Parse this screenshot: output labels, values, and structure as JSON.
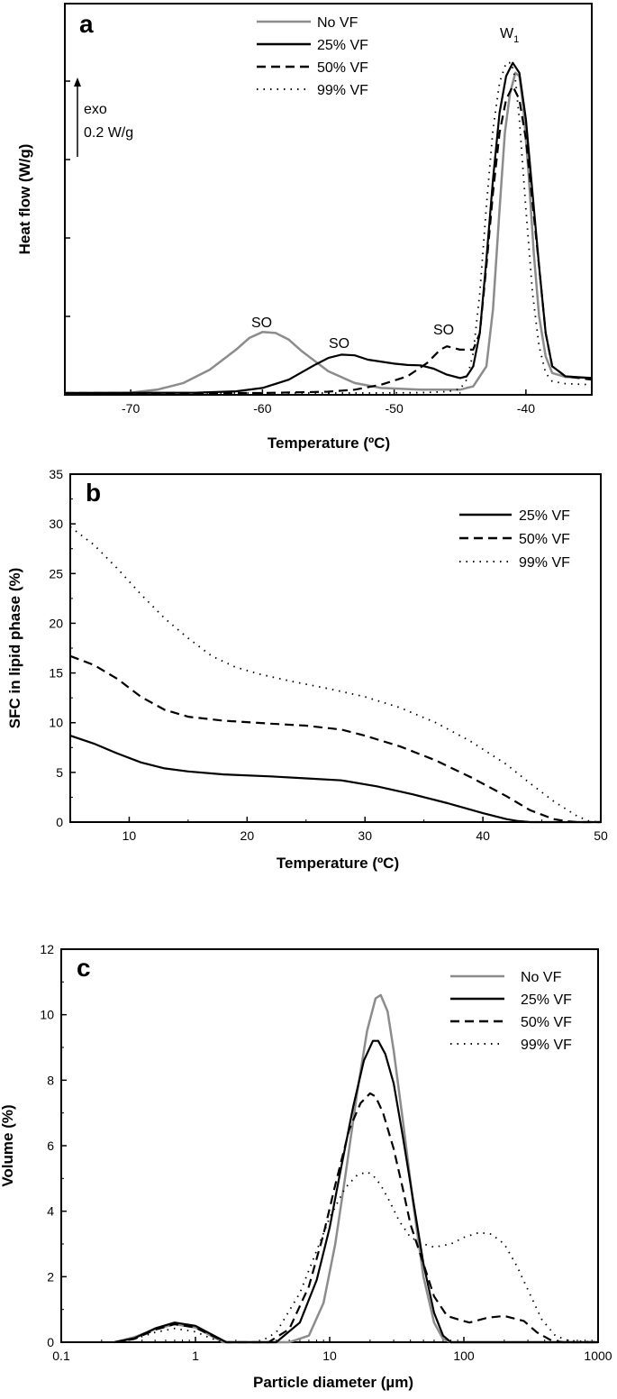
{
  "colors": {
    "no_vf": "#8c8c8c",
    "vf": "#000000"
  },
  "chart_data": [
    {
      "type": "line",
      "panel": "a",
      "title": "",
      "xlabel": "Temperature (ºC)",
      "ylabel": "Heat flow (W/g)",
      "xlim": [
        -75,
        -35
      ],
      "ylim": [
        0,
        1
      ],
      "x_ticks": [
        -70,
        -60,
        -50,
        -40
      ],
      "y_ticks_labeled": false,
      "legend_position": "top-left",
      "scale_bar": {
        "label_1": "exo",
        "label_2": "0.2 W/g"
      },
      "annotations": [
        {
          "text": "SO",
          "x": -60,
          "y": 0.2
        },
        {
          "text": "SO",
          "x": -53.6,
          "y": 0.146
        },
        {
          "text": "SO",
          "x": -45.9,
          "y": 0.186
        },
        {
          "text": "W",
          "sub": "1",
          "x": -42.3,
          "y": 1.0
        }
      ],
      "series": [
        {
          "name": "No VF",
          "style": "gray",
          "x": [
            -75,
            -70,
            -68,
            -66,
            -64,
            -62,
            -61,
            -60,
            -59,
            -58,
            -57,
            -55,
            -53,
            -51,
            -48,
            -45,
            -44,
            -43,
            -42.5,
            -42,
            -41.6,
            -41.2,
            -40.8,
            -40.5,
            -40.2,
            -39.8,
            -39.4,
            -39,
            -38.5,
            -38,
            -37,
            -35
          ],
          "y": [
            0,
            0.001,
            0.01,
            0.03,
            0.07,
            0.13,
            0.165,
            0.183,
            0.18,
            0.16,
            0.125,
            0.065,
            0.03,
            0.015,
            0.01,
            0.01,
            0.02,
            0.08,
            0.25,
            0.55,
            0.78,
            0.9,
            0.96,
            0.95,
            0.86,
            0.66,
            0.42,
            0.23,
            0.11,
            0.06,
            0.048,
            0.045
          ]
        },
        {
          "name": "25% VF",
          "style": "solid",
          "x": [
            -75,
            -65,
            -62,
            -60,
            -58,
            -56,
            -55,
            -54,
            -53,
            -52,
            -50,
            -49,
            -48,
            -47,
            -46,
            -45,
            -44.5,
            -44,
            -43.5,
            -43,
            -42.5,
            -42,
            -41.5,
            -41,
            -40.5,
            -40,
            -39.5,
            -39,
            -38.5,
            -38,
            -37,
            -35
          ],
          "y": [
            0,
            0.001,
            0.005,
            0.015,
            0.04,
            0.085,
            0.105,
            0.115,
            0.113,
            0.1,
            0.088,
            0.084,
            0.083,
            0.073,
            0.055,
            0.045,
            0.05,
            0.08,
            0.18,
            0.4,
            0.64,
            0.84,
            0.95,
            0.99,
            0.96,
            0.82,
            0.6,
            0.38,
            0.18,
            0.08,
            0.05,
            0.045
          ]
        },
        {
          "name": "50% VF",
          "style": "dashed",
          "x": [
            -75,
            -60,
            -55,
            -53,
            -51,
            -49,
            -47.5,
            -46.5,
            -46,
            -45,
            -44,
            -43.5,
            -43,
            -42.5,
            -42,
            -41.5,
            -41,
            -40.5,
            -40,
            -39.5,
            -39,
            -38.5,
            -38,
            -37,
            -35
          ],
          "y": [
            0,
            0,
            0.004,
            0.01,
            0.025,
            0.05,
            0.09,
            0.13,
            0.14,
            0.13,
            0.13,
            0.18,
            0.38,
            0.6,
            0.78,
            0.88,
            0.92,
            0.88,
            0.76,
            0.57,
            0.38,
            0.18,
            0.08,
            0.05,
            0.04
          ]
        },
        {
          "name": "99% VF",
          "style": "dotted",
          "x": [
            -75,
            -52,
            -48,
            -46,
            -45,
            -44.5,
            -44,
            -43.5,
            -43,
            -42.5,
            -42,
            -41.5,
            -41.1,
            -40.8,
            -40.5,
            -40,
            -39.5,
            -39,
            -38.5,
            -38,
            -37,
            -35
          ],
          "y": [
            0,
            0,
            0.001,
            0.004,
            0.012,
            0.04,
            0.12,
            0.3,
            0.56,
            0.79,
            0.93,
            0.99,
            0.99,
            0.94,
            0.82,
            0.55,
            0.3,
            0.14,
            0.06,
            0.035,
            0.028,
            0.025
          ]
        }
      ]
    },
    {
      "type": "line",
      "panel": "b",
      "title": "",
      "xlabel": "Temperature (ºC)",
      "ylabel": "SFC in lipid phase (%)",
      "xlim": [
        5,
        50
      ],
      "ylim": [
        0,
        35
      ],
      "x_ticks": [
        10,
        20,
        30,
        40,
        50
      ],
      "y_ticks": [
        0,
        5,
        10,
        15,
        20,
        25,
        30,
        35
      ],
      "legend_position": "top-right",
      "series": [
        {
          "name": "25% VF",
          "style": "solid",
          "x": [
            5,
            7,
            9,
            11,
            13,
            15,
            18,
            22,
            25,
            28,
            31,
            34,
            37,
            40,
            42,
            43,
            44,
            45,
            50
          ],
          "y": [
            8.7,
            7.9,
            6.9,
            6.0,
            5.4,
            5.1,
            4.8,
            4.6,
            4.4,
            4.2,
            3.6,
            2.8,
            1.9,
            0.9,
            0.3,
            0.1,
            0,
            0,
            0
          ]
        },
        {
          "name": "50% VF",
          "style": "dashed",
          "x": [
            5,
            7,
            9,
            11,
            13,
            15,
            18,
            22,
            25,
            28,
            30,
            33,
            36,
            39,
            42,
            44,
            46,
            47,
            48,
            50
          ],
          "y": [
            16.7,
            15.8,
            14.4,
            12.6,
            11.3,
            10.6,
            10.2,
            9.9,
            9.7,
            9.3,
            8.7,
            7.6,
            6.2,
            4.5,
            2.6,
            1.2,
            0.3,
            0.1,
            0,
            0
          ]
        },
        {
          "name": "99% VF",
          "style": "dotted",
          "x": [
            5,
            7,
            9,
            11,
            13,
            15,
            17,
            19,
            21,
            24,
            27,
            30,
            33,
            36,
            39,
            42,
            44,
            46,
            48,
            49,
            50
          ],
          "y": [
            29.7,
            27.9,
            25.5,
            22.9,
            20.5,
            18.5,
            16.7,
            15.6,
            14.9,
            14.1,
            13.4,
            12.6,
            11.5,
            10.0,
            8.1,
            5.8,
            3.9,
            2.1,
            0.6,
            0.1,
            0
          ]
        }
      ]
    },
    {
      "type": "line",
      "panel": "c",
      "title": "",
      "xlabel": "Particle diameter (µm)",
      "ylabel": "Volume (%)",
      "xscale": "log",
      "xlim": [
        0.1,
        1000
      ],
      "ylim": [
        0,
        12
      ],
      "x_ticks": [
        0.1,
        1,
        10,
        100,
        1000
      ],
      "x_tick_labels": [
        "0.1",
        "1",
        "10",
        "100",
        "1000"
      ],
      "y_ticks": [
        0,
        2,
        4,
        6,
        8,
        10,
        12
      ],
      "legend_position": "top-right",
      "series": [
        {
          "name": "No VF",
          "style": "gray",
          "x": [
            0.25,
            0.35,
            0.5,
            0.7,
            1.0,
            1.3,
            1.6,
            5,
            7,
            9,
            11,
            13,
            16,
            19,
            22,
            24,
            27,
            30,
            35,
            42,
            50,
            60,
            70,
            80,
            1000
          ],
          "y": [
            0,
            0.15,
            0.4,
            0.55,
            0.45,
            0.2,
            0,
            0,
            0.2,
            1.2,
            3.0,
            5.0,
            7.6,
            9.5,
            10.5,
            10.6,
            10.1,
            8.9,
            6.8,
            4.2,
            2.0,
            0.6,
            0.1,
            0,
            0
          ]
        },
        {
          "name": "25% VF",
          "style": "solid",
          "x": [
            0.25,
            0.35,
            0.5,
            0.7,
            1.0,
            1.3,
            1.7,
            4,
            6,
            8,
            10,
            12,
            15,
            18,
            21,
            23,
            26,
            30,
            35,
            42,
            50,
            60,
            70,
            80,
            1000
          ],
          "y": [
            0,
            0.12,
            0.42,
            0.6,
            0.5,
            0.25,
            0,
            0,
            0.6,
            1.9,
            3.5,
            5.2,
            7.2,
            8.6,
            9.2,
            9.2,
            8.8,
            7.9,
            6.3,
            4.3,
            2.4,
            0.9,
            0.2,
            0,
            0
          ]
        },
        {
          "name": "50% VF",
          "style": "dashed",
          "x": [
            0.25,
            0.35,
            0.5,
            0.7,
            1.0,
            1.3,
            1.7,
            3.5,
            5,
            7,
            9,
            11,
            14,
            17,
            20,
            22,
            25,
            30,
            35,
            40,
            50,
            60,
            75,
            90,
            110,
            150,
            200,
            280,
            350,
            450,
            550,
            1000
          ],
          "y": [
            0,
            0.1,
            0.38,
            0.55,
            0.45,
            0.22,
            0,
            0,
            0.4,
            1.7,
            3.3,
            4.8,
            6.5,
            7.3,
            7.6,
            7.5,
            7.0,
            5.9,
            4.7,
            3.6,
            2.4,
            1.4,
            0.8,
            0.7,
            0.6,
            0.75,
            0.8,
            0.65,
            0.3,
            0.05,
            0,
            0
          ]
        },
        {
          "name": "99% VF",
          "style": "dotted",
          "x": [
            0.25,
            0.35,
            0.5,
            0.7,
            1.0,
            1.3,
            1.6,
            3,
            4,
            6,
            8,
            10,
            13,
            16,
            19,
            21,
            24,
            28,
            33,
            40,
            50,
            60,
            80,
            100,
            130,
            160,
            200,
            250,
            300,
            380,
            480,
            600,
            1000
          ],
          "y": [
            0,
            0.1,
            0.3,
            0.42,
            0.32,
            0.12,
            0,
            0,
            0.3,
            1.5,
            2.8,
            3.8,
            4.7,
            5.1,
            5.2,
            5.1,
            4.8,
            4.3,
            3.7,
            3.2,
            3.0,
            2.9,
            3.0,
            3.2,
            3.35,
            3.3,
            3.0,
            2.3,
            1.6,
            0.7,
            0.2,
            0.05,
            0
          ]
        }
      ]
    }
  ]
}
